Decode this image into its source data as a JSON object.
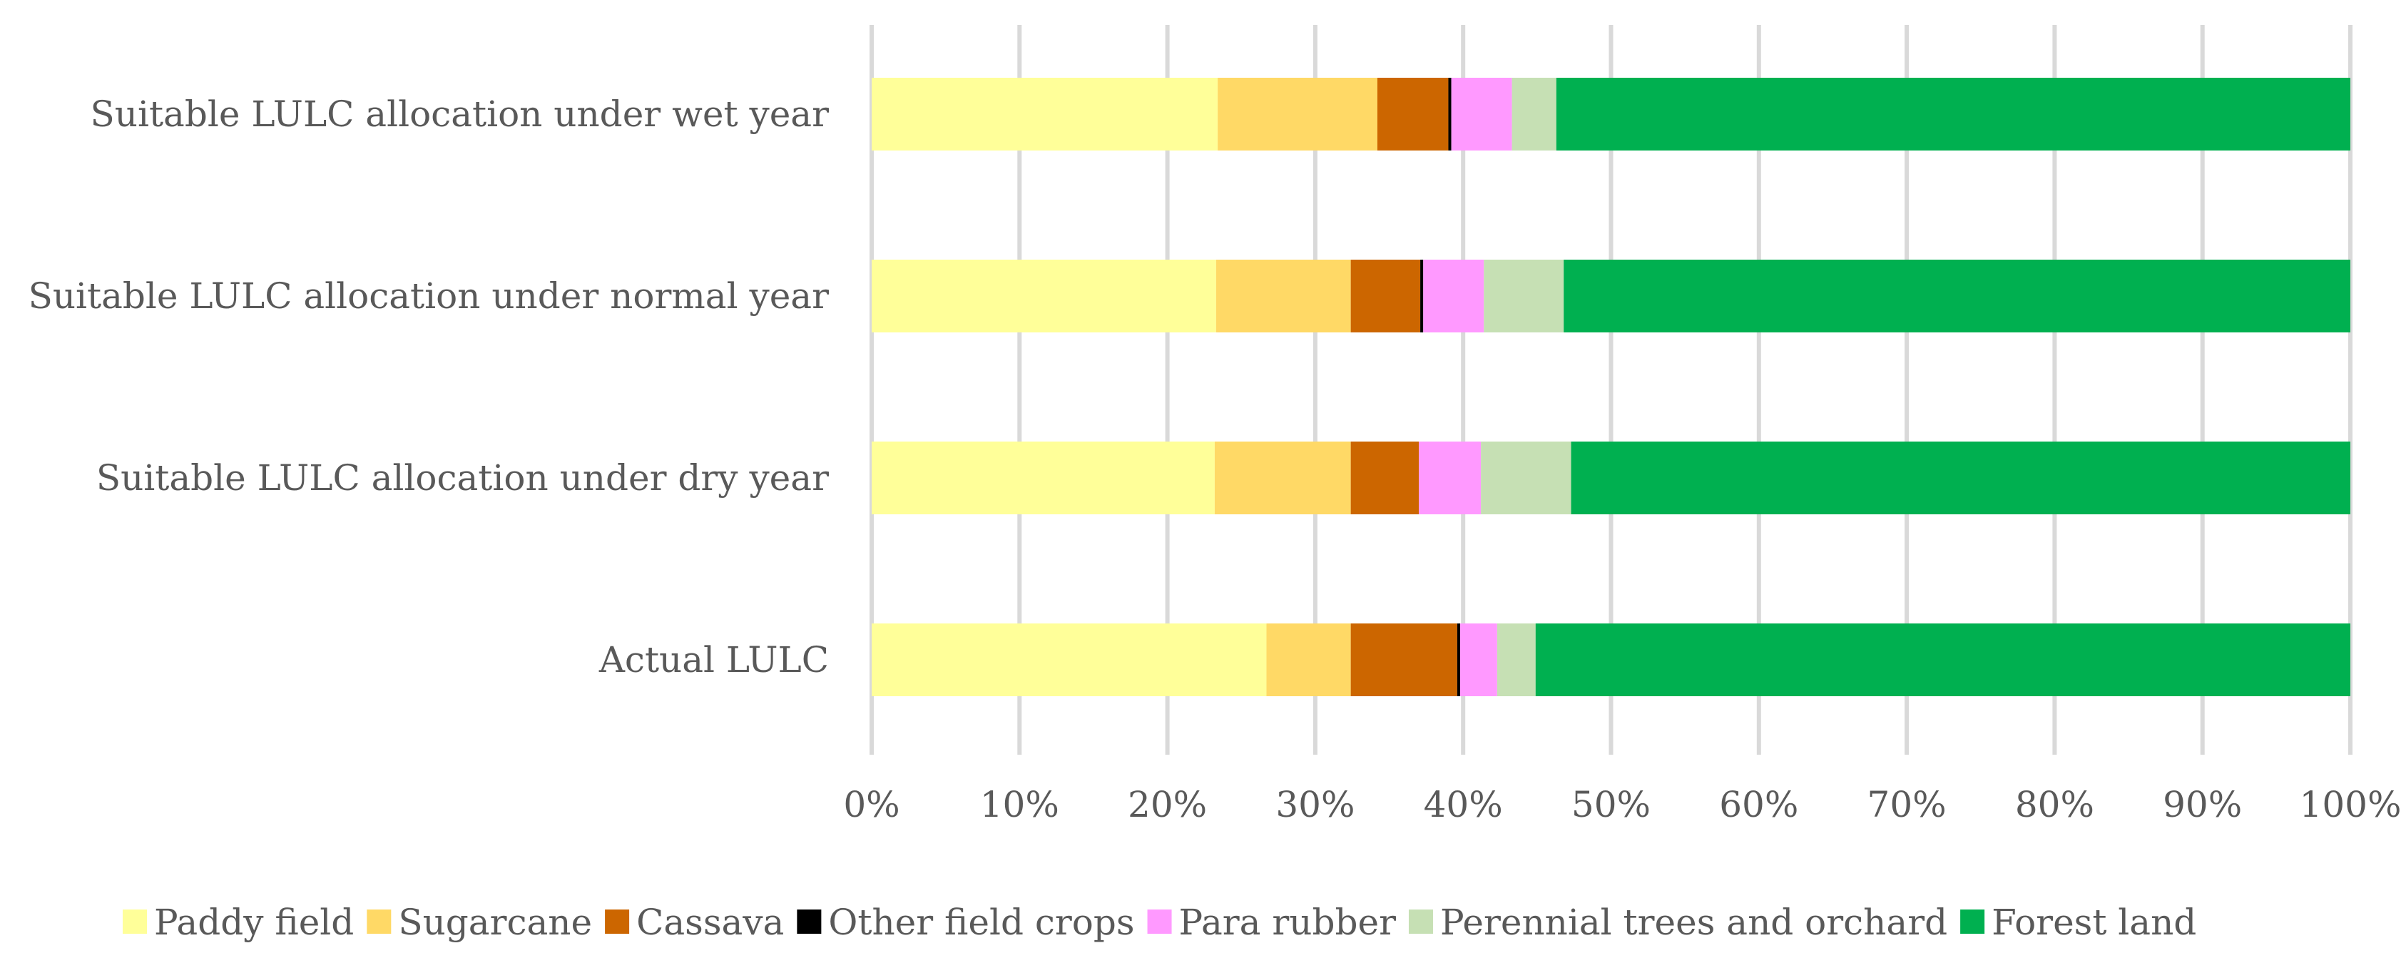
{
  "chart_data": {
    "type": "bar",
    "orientation": "horizontal",
    "stacked": "percent",
    "title": "",
    "xlabel": "",
    "ylabel": "",
    "xlim": [
      0,
      100
    ],
    "x_ticks": [
      "0%",
      "10%",
      "20%",
      "30%",
      "40%",
      "50%",
      "60%",
      "70%",
      "80%",
      "90%",
      "100%"
    ],
    "grid": "vertical",
    "legend_position": "bottom",
    "categories": [
      "Suitable LULC allocation under wet year",
      "Suitable LULC allocation under normal year",
      "Suitable LULC allocation under dry year",
      "Actual LULC"
    ],
    "series": [
      {
        "name": "Paddy field",
        "color": "#FFFF99",
        "values": [
          23.4,
          23.3,
          23.2,
          26.7
        ]
      },
      {
        "name": "Sugarcane",
        "color": "#FFD966",
        "values": [
          10.8,
          9.1,
          9.2,
          5.7
        ]
      },
      {
        "name": "Cassava",
        "color": "#CC6600",
        "values": [
          4.8,
          4.7,
          4.6,
          7.2
        ]
      },
      {
        "name": "Other field crops",
        "color": "#000000",
        "values": [
          0.2,
          0.2,
          0.0,
          0.2
        ]
      },
      {
        "name": "Para rubber",
        "color": "#FF99FF",
        "values": [
          4.1,
          4.1,
          4.2,
          2.5
        ]
      },
      {
        "name": "Perennial trees and orchard",
        "color": "#C6E0B4",
        "values": [
          3.0,
          5.4,
          6.1,
          2.6
        ]
      },
      {
        "name": "Forest land",
        "color": "#00B050",
        "values": [
          53.7,
          53.2,
          52.7,
          55.1
        ]
      }
    ]
  }
}
